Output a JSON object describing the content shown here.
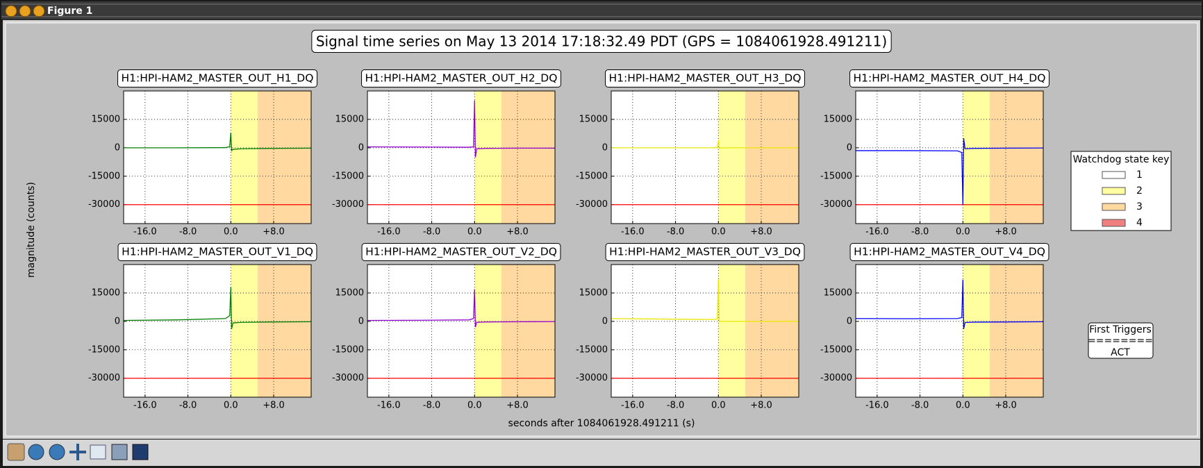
{
  "window": {
    "title": "Figure 1"
  },
  "figure": {
    "title": "Signal time series on May 13 2014 17:18:32.49 PDT (GPS = 1084061928.491211)",
    "xlabel": "seconds after 1084061928.491211 (s)",
    "ylabel": "magnitude (counts)"
  },
  "legend": {
    "title": "Watchdog state key",
    "entries": [
      {
        "label": "1",
        "color": "#ffffff"
      },
      {
        "label": "2",
        "color": "#ffffa0"
      },
      {
        "label": "3",
        "color": "#ffd9a0"
      },
      {
        "label": "4",
        "color": "#f08080"
      }
    ]
  },
  "triggers": {
    "title": "First Triggers",
    "rule": "========",
    "items": [
      "ACT"
    ]
  },
  "chart_data": [
    {
      "type": "line",
      "title": "H1:HPI-HAM2_MASTER_OUT_H1_DQ",
      "xlim": [
        -20,
        15
      ],
      "ylim": [
        -40000,
        30000
      ],
      "xticks": [
        {
          "value": -16,
          "label": "-16.0"
        },
        {
          "value": -8,
          "label": "-8.0"
        },
        {
          "value": 0,
          "label": "0.0"
        },
        {
          "value": 8,
          "label": "+8.0"
        }
      ],
      "yticks": [
        15000,
        0,
        -15000,
        -30000
      ],
      "grid": true,
      "hline": -30000,
      "hline_color": "#ff0000",
      "spans": [
        {
          "start": 0,
          "end": 5,
          "color": "#ffffa0"
        },
        {
          "start": 5,
          "end": 15,
          "color": "#ffd9a0"
        }
      ],
      "x": [
        -20,
        -10,
        -1,
        -0.2,
        0,
        0.15,
        0.4,
        2,
        8,
        15
      ],
      "series": [
        {
          "color": "#007f00",
          "values": [
            0,
            0,
            100,
            600,
            8000,
            -1500,
            -800,
            -500,
            -300,
            -200
          ]
        }
      ]
    },
    {
      "type": "line",
      "title": "H1:HPI-HAM2_MASTER_OUT_H2_DQ",
      "xlim": [
        -20,
        15
      ],
      "ylim": [
        -40000,
        30000
      ],
      "xticks": [
        {
          "value": -16,
          "label": "-16.0"
        },
        {
          "value": -8,
          "label": "-8.0"
        },
        {
          "value": 0,
          "label": "0.0"
        },
        {
          "value": 8,
          "label": "+8.0"
        }
      ],
      "yticks": [
        15000,
        0,
        -15000,
        -30000
      ],
      "grid": true,
      "hline": -30000,
      "hline_color": "#ff0000",
      "spans": [
        {
          "start": 0,
          "end": 5,
          "color": "#ffffa0"
        },
        {
          "start": 5,
          "end": 15,
          "color": "#ffd9a0"
        }
      ],
      "x": [
        -20,
        -10,
        -1,
        -0.2,
        0,
        0.15,
        0.4,
        2,
        8,
        15
      ],
      "series": [
        {
          "color": "#9400d3",
          "values": [
            500,
            400,
            300,
            500,
            25000,
            -5000,
            -500,
            -300,
            -200,
            -200
          ]
        }
      ]
    },
    {
      "type": "line",
      "title": "H1:HPI-HAM2_MASTER_OUT_H3_DQ",
      "xlim": [
        -20,
        15
      ],
      "ylim": [
        -40000,
        30000
      ],
      "xticks": [
        {
          "value": -16,
          "label": "-16.0"
        },
        {
          "value": -8,
          "label": "-8.0"
        },
        {
          "value": 0,
          "label": "0.0"
        },
        {
          "value": 8,
          "label": "+8.0"
        }
      ],
      "yticks": [
        15000,
        0,
        -15000,
        -30000
      ],
      "grid": true,
      "hline": -30000,
      "hline_color": "#ff0000",
      "spans": [
        {
          "start": 0,
          "end": 5,
          "color": "#ffffa0"
        },
        {
          "start": 5,
          "end": 15,
          "color": "#ffd9a0"
        }
      ],
      "x": [
        -20,
        -10,
        -1,
        -0.2,
        0,
        0.15,
        0.4,
        2,
        8,
        15
      ],
      "series": [
        {
          "color": "#e8e800",
          "values": [
            0,
            0,
            0,
            200,
            4000,
            -300,
            -100,
            0,
            0,
            0
          ]
        }
      ]
    },
    {
      "type": "line",
      "title": "H1:HPI-HAM2_MASTER_OUT_H4_DQ",
      "xlim": [
        -20,
        15
      ],
      "ylim": [
        -40000,
        30000
      ],
      "xticks": [
        {
          "value": -16,
          "label": "-16.0"
        },
        {
          "value": -8,
          "label": "-8.0"
        },
        {
          "value": 0,
          "label": "0.0"
        },
        {
          "value": 8,
          "label": "+8.0"
        }
      ],
      "yticks": [
        15000,
        0,
        -15000,
        -30000
      ],
      "grid": true,
      "hline": -30000,
      "hline_color": "#ff0000",
      "spans": [
        {
          "start": 0,
          "end": 5,
          "color": "#ffffa0"
        },
        {
          "start": 5,
          "end": 15,
          "color": "#ffd9a0"
        }
      ],
      "x": [
        -20,
        -10,
        -1,
        -0.2,
        0,
        0.15,
        0.4,
        2,
        8,
        15
      ],
      "series": [
        {
          "color": "#0000ff",
          "values": [
            -1500,
            -1500,
            -1600,
            -2500,
            -30000,
            5000,
            -500,
            -300,
            -200,
            -100
          ]
        }
      ]
    },
    {
      "type": "line",
      "title": "H1:HPI-HAM2_MASTER_OUT_V1_DQ",
      "xlim": [
        -20,
        15
      ],
      "ylim": [
        -40000,
        30000
      ],
      "xticks": [
        {
          "value": -16,
          "label": "-16.0"
        },
        {
          "value": -8,
          "label": "-8.0"
        },
        {
          "value": 0,
          "label": "0.0"
        },
        {
          "value": 8,
          "label": "+8.0"
        }
      ],
      "yticks": [
        15000,
        0,
        -15000,
        -30000
      ],
      "grid": true,
      "hline": -30000,
      "hline_color": "#ff0000",
      "spans": [
        {
          "start": 0,
          "end": 5,
          "color": "#ffffa0"
        },
        {
          "start": 5,
          "end": 15,
          "color": "#ffd9a0"
        }
      ],
      "x": [
        -20,
        -10,
        -1,
        -0.2,
        0,
        0.15,
        0.4,
        2,
        8,
        15
      ],
      "series": [
        {
          "color": "#007f00",
          "values": [
            500,
            800,
            1500,
            3000,
            18000,
            -4000,
            -800,
            -500,
            -300,
            -200
          ]
        }
      ]
    },
    {
      "type": "line",
      "title": "H1:HPI-HAM2_MASTER_OUT_V2_DQ",
      "xlim": [
        -20,
        15
      ],
      "ylim": [
        -40000,
        30000
      ],
      "xticks": [
        {
          "value": -16,
          "label": "-16.0"
        },
        {
          "value": -8,
          "label": "-8.0"
        },
        {
          "value": 0,
          "label": "0.0"
        },
        {
          "value": 8,
          "label": "+8.0"
        }
      ],
      "yticks": [
        15000,
        0,
        -15000,
        -30000
      ],
      "grid": true,
      "hline": -30000,
      "hline_color": "#ff0000",
      "spans": [
        {
          "start": 0,
          "end": 5,
          "color": "#ffffa0"
        },
        {
          "start": 5,
          "end": 15,
          "color": "#ffd9a0"
        }
      ],
      "x": [
        -20,
        -10,
        -1,
        -0.2,
        0,
        0.15,
        0.4,
        2,
        8,
        15
      ],
      "series": [
        {
          "color": "#9400d3",
          "values": [
            500,
            600,
            800,
            1500,
            17000,
            -3000,
            -500,
            -300,
            -200,
            -100
          ]
        }
      ]
    },
    {
      "type": "line",
      "title": "H1:HPI-HAM2_MASTER_OUT_V3_DQ",
      "xlim": [
        -20,
        15
      ],
      "ylim": [
        -40000,
        30000
      ],
      "xticks": [
        {
          "value": -16,
          "label": "-16.0"
        },
        {
          "value": -8,
          "label": "-8.0"
        },
        {
          "value": 0,
          "label": "0.0"
        },
        {
          "value": 8,
          "label": "+8.0"
        }
      ],
      "yticks": [
        15000,
        0,
        -15000,
        -30000
      ],
      "grid": true,
      "hline": -30000,
      "hline_color": "#ff0000",
      "spans": [
        {
          "start": 0,
          "end": 5,
          "color": "#ffffa0"
        },
        {
          "start": 5,
          "end": 15,
          "color": "#ffd9a0"
        }
      ],
      "x": [
        -20,
        -10,
        -1,
        -0.2,
        0,
        0.15,
        0.4,
        2,
        8,
        15
      ],
      "series": [
        {
          "color": "#e8e800",
          "values": [
            1500,
            1200,
            1000,
            1200,
            22000,
            0,
            0,
            0,
            0,
            0
          ]
        }
      ]
    },
    {
      "type": "line",
      "title": "H1:HPI-HAM2_MASTER_OUT_V4_DQ",
      "xlim": [
        -20,
        15
      ],
      "ylim": [
        -40000,
        30000
      ],
      "xticks": [
        {
          "value": -16,
          "label": "-16.0"
        },
        {
          "value": -8,
          "label": "-8.0"
        },
        {
          "value": 0,
          "label": "0.0"
        },
        {
          "value": 8,
          "label": "+8.0"
        }
      ],
      "yticks": [
        15000,
        0,
        -15000,
        -30000
      ],
      "grid": true,
      "hline": -30000,
      "hline_color": "#ff0000",
      "spans": [
        {
          "start": 0,
          "end": 5,
          "color": "#ffffa0"
        },
        {
          "start": 5,
          "end": 15,
          "color": "#ffd9a0"
        }
      ],
      "x": [
        -20,
        -10,
        -1,
        -0.2,
        0,
        0.15,
        0.4,
        2,
        8,
        15
      ],
      "series": [
        {
          "color": "#0000ff",
          "values": [
            1500,
            1400,
            1500,
            2000,
            22000,
            -4000,
            -600,
            -400,
            -300,
            -200
          ]
        }
      ]
    }
  ]
}
